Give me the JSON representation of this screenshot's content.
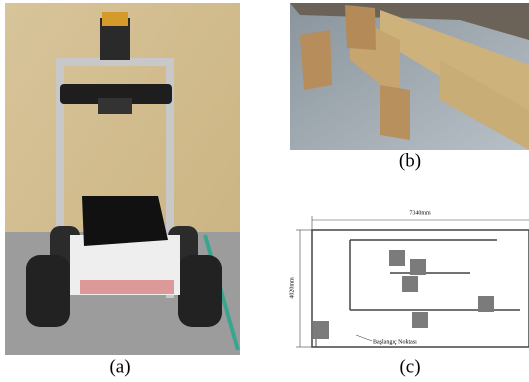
{
  "captions": {
    "a": "(a)",
    "b": "(b)",
    "c": "(c)"
  },
  "diagram": {
    "width_label": "7340mm",
    "height_label": "4020mm",
    "start_label": "Başlangıç Noktası"
  }
}
